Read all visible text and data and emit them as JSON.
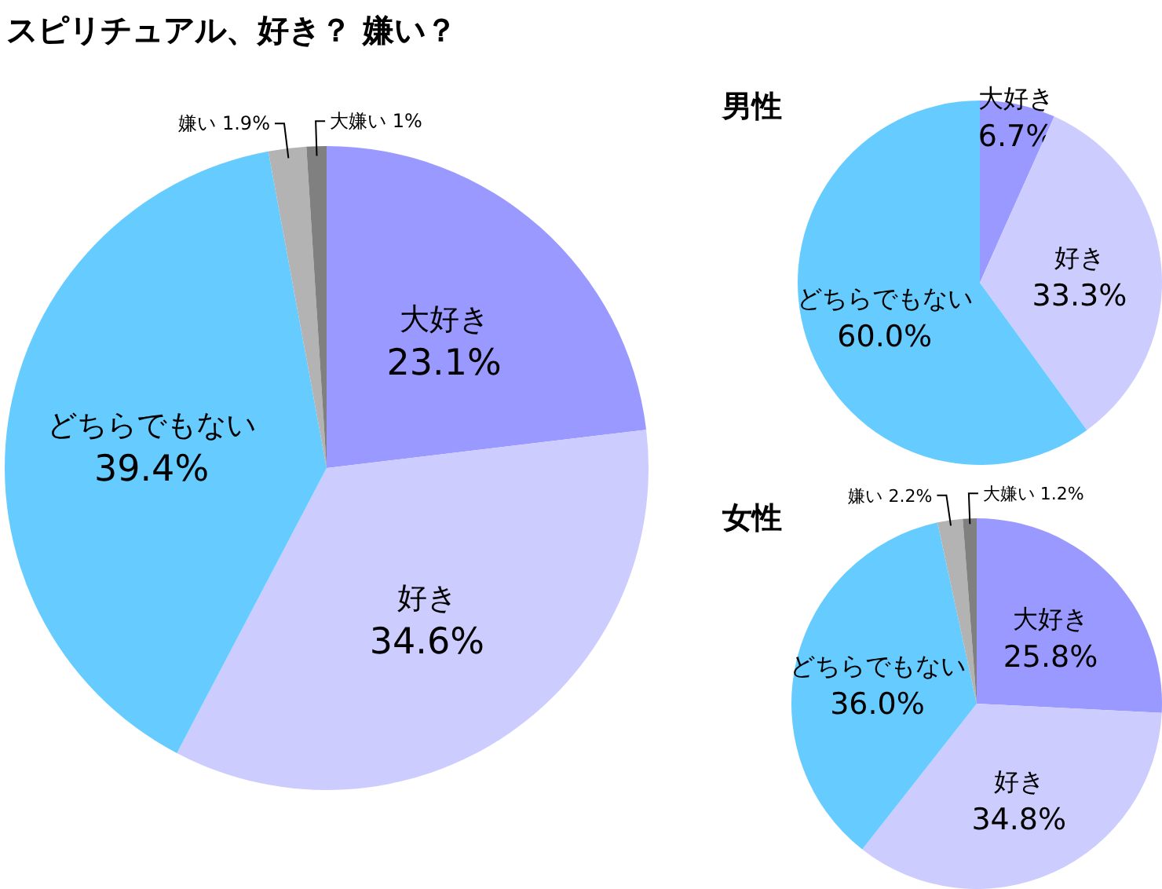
{
  "chart_data": [
    {
      "type": "pie",
      "title": "スピリチュアル、好き？ 嫌い？",
      "categories": [
        "大好き",
        "好き",
        "どちらでもない",
        "嫌い",
        "大嫌い"
      ],
      "values": [
        23.1,
        34.6,
        39.4,
        1.9,
        1
      ],
      "colors": [
        "#9999ff",
        "#ccccff",
        "#66ccff",
        "#b3b3b3",
        "#808080"
      ],
      "value_labels": [
        "23.1%",
        "34.6%",
        "39.4%",
        "1.9%",
        "1%"
      ]
    },
    {
      "type": "pie",
      "title": "男性",
      "categories": [
        "大好き",
        "好き",
        "どちらでもない"
      ],
      "values": [
        6.7,
        33.3,
        60.0
      ],
      "colors": [
        "#9999ff",
        "#ccccff",
        "#66ccff"
      ],
      "value_labels": [
        "6.7%",
        "33.3%",
        "60.0%"
      ]
    },
    {
      "type": "pie",
      "title": "女性",
      "categories": [
        "大好き",
        "好き",
        "どちらでもない",
        "嫌い",
        "大嫌い"
      ],
      "values": [
        25.8,
        34.8,
        36.0,
        2.2,
        1.2
      ],
      "colors": [
        "#9999ff",
        "#ccccff",
        "#66ccff",
        "#b3b3b3",
        "#808080"
      ],
      "value_labels": [
        "25.8%",
        "34.8%",
        "36.0%",
        "2.2%",
        "1.2%"
      ]
    }
  ]
}
